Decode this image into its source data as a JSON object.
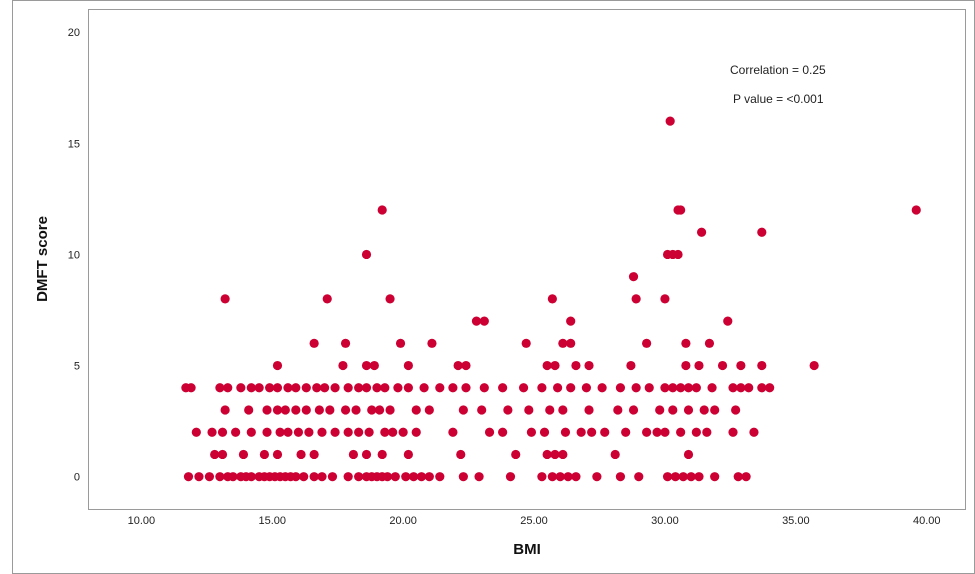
{
  "chart_data": {
    "type": "scatter",
    "xlabel": "BMI",
    "ylabel": "DMFT score",
    "xlim": [
      8,
      41.5
    ],
    "ylim": [
      -1.5,
      21
    ],
    "x_ticks": [
      "10.00",
      "15.00",
      "20.00",
      "25.00",
      "30.00",
      "35.00",
      "40.00"
    ],
    "y_ticks": [
      "0",
      "5",
      "10",
      "15",
      "20"
    ],
    "grid": false,
    "marker_color": "#cc0033",
    "annotations": [
      "Correlation = 0.25",
      "P value = <0.001"
    ],
    "points": [
      [
        11.8,
        0
      ],
      [
        12.2,
        0
      ],
      [
        12.6,
        0
      ],
      [
        13.0,
        0
      ],
      [
        13.3,
        0
      ],
      [
        13.5,
        0
      ],
      [
        13.8,
        0
      ],
      [
        14.0,
        0
      ],
      [
        14.2,
        0
      ],
      [
        14.5,
        0
      ],
      [
        14.7,
        0
      ],
      [
        14.9,
        0
      ],
      [
        15.1,
        0
      ],
      [
        15.3,
        0
      ],
      [
        15.5,
        0
      ],
      [
        15.7,
        0
      ],
      [
        15.9,
        0
      ],
      [
        16.2,
        0
      ],
      [
        16.6,
        0
      ],
      [
        16.9,
        0
      ],
      [
        17.3,
        0
      ],
      [
        17.9,
        0
      ],
      [
        18.3,
        0
      ],
      [
        18.6,
        0
      ],
      [
        18.8,
        0
      ],
      [
        19.0,
        0
      ],
      [
        19.2,
        0
      ],
      [
        19.4,
        0
      ],
      [
        19.7,
        0
      ],
      [
        20.1,
        0
      ],
      [
        20.4,
        0
      ],
      [
        20.7,
        0
      ],
      [
        21.0,
        0
      ],
      [
        21.4,
        0
      ],
      [
        22.3,
        0
      ],
      [
        22.9,
        0
      ],
      [
        24.1,
        0
      ],
      [
        25.3,
        0
      ],
      [
        25.7,
        0
      ],
      [
        26.0,
        0
      ],
      [
        26.3,
        0
      ],
      [
        26.6,
        0
      ],
      [
        27.4,
        0
      ],
      [
        28.3,
        0
      ],
      [
        29.0,
        0
      ],
      [
        30.1,
        0
      ],
      [
        30.4,
        0
      ],
      [
        30.7,
        0
      ],
      [
        31.0,
        0
      ],
      [
        31.3,
        0
      ],
      [
        31.9,
        0
      ],
      [
        32.8,
        0
      ],
      [
        33.1,
        0
      ],
      [
        12.8,
        1
      ],
      [
        13.1,
        1
      ],
      [
        13.9,
        1
      ],
      [
        14.7,
        1
      ],
      [
        15.2,
        1
      ],
      [
        16.1,
        1
      ],
      [
        16.6,
        1
      ],
      [
        18.1,
        1
      ],
      [
        18.6,
        1
      ],
      [
        19.2,
        1
      ],
      [
        20.2,
        1
      ],
      [
        22.2,
        1
      ],
      [
        24.3,
        1
      ],
      [
        25.5,
        1
      ],
      [
        25.8,
        1
      ],
      [
        26.1,
        1
      ],
      [
        28.1,
        1
      ],
      [
        30.9,
        1
      ],
      [
        12.1,
        2
      ],
      [
        12.7,
        2
      ],
      [
        13.1,
        2
      ],
      [
        13.6,
        2
      ],
      [
        14.2,
        2
      ],
      [
        14.8,
        2
      ],
      [
        15.3,
        2
      ],
      [
        15.6,
        2
      ],
      [
        16.0,
        2
      ],
      [
        16.4,
        2
      ],
      [
        16.9,
        2
      ],
      [
        17.4,
        2
      ],
      [
        17.9,
        2
      ],
      [
        18.3,
        2
      ],
      [
        18.7,
        2
      ],
      [
        19.3,
        2
      ],
      [
        19.6,
        2
      ],
      [
        20.0,
        2
      ],
      [
        20.5,
        2
      ],
      [
        21.9,
        2
      ],
      [
        23.3,
        2
      ],
      [
        23.8,
        2
      ],
      [
        24.9,
        2
      ],
      [
        25.4,
        2
      ],
      [
        26.2,
        2
      ],
      [
        26.8,
        2
      ],
      [
        27.2,
        2
      ],
      [
        27.7,
        2
      ],
      [
        28.5,
        2
      ],
      [
        29.3,
        2
      ],
      [
        29.7,
        2
      ],
      [
        30.0,
        2
      ],
      [
        30.6,
        2
      ],
      [
        31.2,
        2
      ],
      [
        31.6,
        2
      ],
      [
        32.6,
        2
      ],
      [
        33.4,
        2
      ],
      [
        13.2,
        3
      ],
      [
        14.1,
        3
      ],
      [
        14.8,
        3
      ],
      [
        15.2,
        3
      ],
      [
        15.5,
        3
      ],
      [
        15.9,
        3
      ],
      [
        16.3,
        3
      ],
      [
        16.8,
        3
      ],
      [
        17.2,
        3
      ],
      [
        17.8,
        3
      ],
      [
        18.2,
        3
      ],
      [
        18.8,
        3
      ],
      [
        19.1,
        3
      ],
      [
        19.5,
        3
      ],
      [
        20.5,
        3
      ],
      [
        21.0,
        3
      ],
      [
        22.3,
        3
      ],
      [
        23.0,
        3
      ],
      [
        24.0,
        3
      ],
      [
        24.8,
        3
      ],
      [
        25.6,
        3
      ],
      [
        26.1,
        3
      ],
      [
        27.1,
        3
      ],
      [
        28.2,
        3
      ],
      [
        28.8,
        3
      ],
      [
        29.8,
        3
      ],
      [
        30.3,
        3
      ],
      [
        30.9,
        3
      ],
      [
        31.5,
        3
      ],
      [
        31.9,
        3
      ],
      [
        32.7,
        3
      ],
      [
        11.7,
        4
      ],
      [
        11.9,
        4
      ],
      [
        13.0,
        4
      ],
      [
        13.3,
        4
      ],
      [
        13.8,
        4
      ],
      [
        14.2,
        4
      ],
      [
        14.5,
        4
      ],
      [
        14.9,
        4
      ],
      [
        15.2,
        4
      ],
      [
        15.6,
        4
      ],
      [
        15.9,
        4
      ],
      [
        16.3,
        4
      ],
      [
        16.7,
        4
      ],
      [
        17.0,
        4
      ],
      [
        17.4,
        4
      ],
      [
        17.9,
        4
      ],
      [
        18.3,
        4
      ],
      [
        18.6,
        4
      ],
      [
        19.0,
        4
      ],
      [
        19.3,
        4
      ],
      [
        19.8,
        4
      ],
      [
        20.2,
        4
      ],
      [
        20.8,
        4
      ],
      [
        21.4,
        4
      ],
      [
        21.9,
        4
      ],
      [
        22.4,
        4
      ],
      [
        23.1,
        4
      ],
      [
        23.8,
        4
      ],
      [
        24.6,
        4
      ],
      [
        25.3,
        4
      ],
      [
        25.9,
        4
      ],
      [
        26.4,
        4
      ],
      [
        27.0,
        4
      ],
      [
        27.6,
        4
      ],
      [
        28.3,
        4
      ],
      [
        28.9,
        4
      ],
      [
        29.4,
        4
      ],
      [
        30.0,
        4
      ],
      [
        30.3,
        4
      ],
      [
        30.6,
        4
      ],
      [
        30.9,
        4
      ],
      [
        31.2,
        4
      ],
      [
        31.8,
        4
      ],
      [
        32.6,
        4
      ],
      [
        32.9,
        4
      ],
      [
        33.2,
        4
      ],
      [
        33.7,
        4
      ],
      [
        34.0,
        4
      ],
      [
        15.2,
        5
      ],
      [
        17.7,
        5
      ],
      [
        18.6,
        5
      ],
      [
        18.9,
        5
      ],
      [
        20.2,
        5
      ],
      [
        22.1,
        5
      ],
      [
        22.4,
        5
      ],
      [
        25.5,
        5
      ],
      [
        25.8,
        5
      ],
      [
        26.6,
        5
      ],
      [
        27.1,
        5
      ],
      [
        28.7,
        5
      ],
      [
        30.8,
        5
      ],
      [
        31.3,
        5
      ],
      [
        32.2,
        5
      ],
      [
        32.9,
        5
      ],
      [
        33.7,
        5
      ],
      [
        35.7,
        5
      ],
      [
        16.6,
        6
      ],
      [
        17.8,
        6
      ],
      [
        19.9,
        6
      ],
      [
        21.1,
        6
      ],
      [
        24.7,
        6
      ],
      [
        26.1,
        6
      ],
      [
        26.4,
        6
      ],
      [
        29.3,
        6
      ],
      [
        30.8,
        6
      ],
      [
        31.7,
        6
      ],
      [
        22.8,
        7
      ],
      [
        23.1,
        7
      ],
      [
        26.4,
        7
      ],
      [
        32.4,
        7
      ],
      [
        13.2,
        8
      ],
      [
        17.1,
        8
      ],
      [
        19.5,
        8
      ],
      [
        25.7,
        8
      ],
      [
        28.9,
        8
      ],
      [
        30.0,
        8
      ],
      [
        28.8,
        9
      ],
      [
        18.6,
        10
      ],
      [
        30.1,
        10
      ],
      [
        30.3,
        10
      ],
      [
        30.5,
        10
      ],
      [
        31.4,
        11
      ],
      [
        33.7,
        11
      ],
      [
        19.2,
        12
      ],
      [
        30.5,
        12
      ],
      [
        30.6,
        12
      ],
      [
        39.6,
        12
      ],
      [
        30.2,
        16
      ]
    ]
  }
}
